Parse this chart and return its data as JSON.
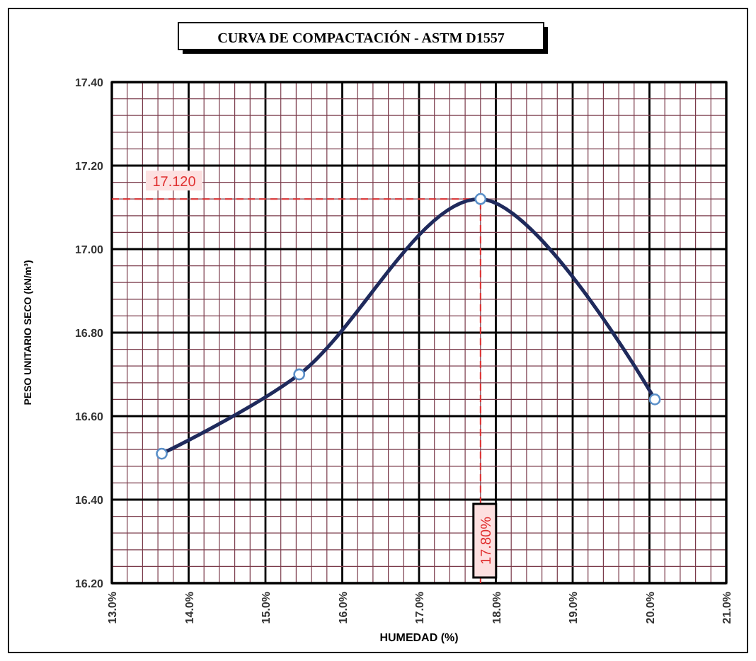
{
  "chart_data": {
    "type": "line",
    "title": "CURVA DE COMPACTACIÓN - ASTM D1557",
    "xlabel": "HUMEDAD (%)",
    "ylabel": "PESO UNITARIO SECO (kN/m³)",
    "x": [
      13.65,
      15.44,
      17.8,
      20.07
    ],
    "series": [
      {
        "color": "#1f2a5c",
        "values": [
          16.51,
          16.7,
          17.12,
          16.64
        ]
      }
    ],
    "marker": "circle",
    "line_style": "solid",
    "grid": true,
    "xlim": [
      13,
      21
    ],
    "xticks": [
      {
        "value": 13,
        "label": "13.0%"
      },
      {
        "value": 13.2,
        "label": null
      },
      {
        "value": 13.4,
        "label": null
      },
      {
        "value": 13.6,
        "label": null
      },
      {
        "value": 13.8,
        "label": null
      },
      {
        "value": 14,
        "label": "14.0%"
      },
      {
        "value": 14.2,
        "label": null
      },
      {
        "value": 14.4,
        "label": null
      },
      {
        "value": 14.6,
        "label": null
      },
      {
        "value": 14.8,
        "label": null
      },
      {
        "value": 15,
        "label": "15.0%"
      },
      {
        "value": 15.2,
        "label": null
      },
      {
        "value": 15.4,
        "label": null
      },
      {
        "value": 15.6,
        "label": null
      },
      {
        "value": 15.8,
        "label": null
      },
      {
        "value": 16,
        "label": "16.0%"
      },
      {
        "value": 16.2,
        "label": null
      },
      {
        "value": 16.4,
        "label": null
      },
      {
        "value": 16.6,
        "label": null
      },
      {
        "value": 16.8,
        "label": null
      },
      {
        "value": 17,
        "label": "17.0%"
      },
      {
        "value": 17.2,
        "label": null
      },
      {
        "value": 17.4,
        "label": null
      },
      {
        "value": 17.6,
        "label": null
      },
      {
        "value": 17.8,
        "label": null
      },
      {
        "value": 18,
        "label": "18.0%"
      },
      {
        "value": 18.2,
        "label": null
      },
      {
        "value": 18.4,
        "label": null
      },
      {
        "value": 18.6,
        "label": null
      },
      {
        "value": 18.8,
        "label": null
      },
      {
        "value": 19,
        "label": "19.0%"
      },
      {
        "value": 19.2,
        "label": null
      },
      {
        "value": 19.4,
        "label": null
      },
      {
        "value": 19.6,
        "label": null
      },
      {
        "value": 19.8,
        "label": null
      },
      {
        "value": 20,
        "label": "20.0%"
      },
      {
        "value": 20.2,
        "label": null
      },
      {
        "value": 20.4,
        "label": null
      },
      {
        "value": 20.6,
        "label": null
      },
      {
        "value": 20.8,
        "label": null
      },
      {
        "value": 21,
        "label": "21.0%"
      }
    ],
    "ylim": [
      16.2,
      17.4
    ],
    "yticks": [
      {
        "value": 16.2,
        "label": "16.20"
      },
      {
        "value": 16.24,
        "label": null
      },
      {
        "value": 16.28,
        "label": null
      },
      {
        "value": 16.32,
        "label": null
      },
      {
        "value": 16.36,
        "label": null
      },
      {
        "value": 16.4,
        "label": "16.40"
      },
      {
        "value": 16.44,
        "label": null
      },
      {
        "value": 16.48,
        "label": null
      },
      {
        "value": 16.52,
        "label": null
      },
      {
        "value": 16.56,
        "label": null
      },
      {
        "value": 16.6,
        "label": "16.60"
      },
      {
        "value": 16.64,
        "label": null
      },
      {
        "value": 16.68,
        "label": null
      },
      {
        "value": 16.72,
        "label": null
      },
      {
        "value": 16.76,
        "label": null
      },
      {
        "value": 16.8,
        "label": "16.80"
      },
      {
        "value": 16.84,
        "label": null
      },
      {
        "value": 16.88,
        "label": null
      },
      {
        "value": 16.92,
        "label": null
      },
      {
        "value": 16.96,
        "label": null
      },
      {
        "value": 17,
        "label": "17.00"
      },
      {
        "value": 17.04,
        "label": null
      },
      {
        "value": 17.08,
        "label": null
      },
      {
        "value": 17.12,
        "label": null
      },
      {
        "value": 17.16,
        "label": null
      },
      {
        "value": 17.2,
        "label": "17.20"
      },
      {
        "value": 17.24,
        "label": null
      },
      {
        "value": 17.28,
        "label": null
      },
      {
        "value": 17.32,
        "label": null
      },
      {
        "value": 17.36,
        "label": null
      },
      {
        "value": 17.4,
        "label": "17.40"
      }
    ],
    "ref_lines": [
      {
        "axis": "y",
        "value": 17.12,
        "label": "17.120",
        "color": "#e03030",
        "line_style": "dashed"
      },
      {
        "axis": "x",
        "value": 17.8,
        "label": "17.80%",
        "color": "#e03030",
        "line_style": "dashed"
      }
    ]
  }
}
